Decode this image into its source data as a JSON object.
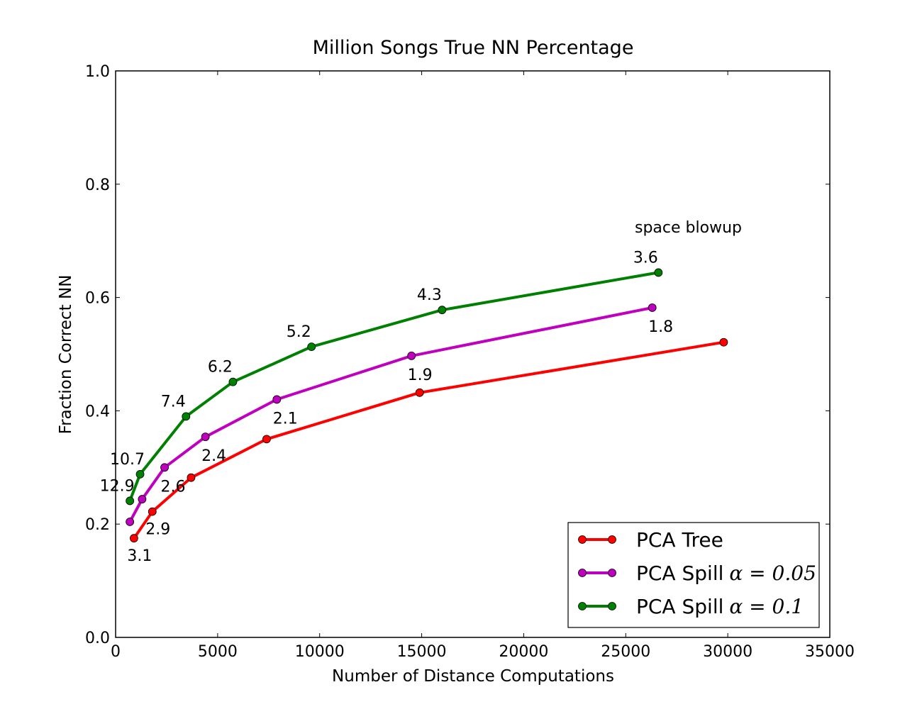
{
  "chart_data": {
    "type": "line",
    "title": "Million Songs True NN Percentage",
    "xlabel": "Number of Distance Computations",
    "ylabel": "Fraction Correct NN",
    "xlim": [
      0,
      35000
    ],
    "ylim": [
      0.0,
      1.0
    ],
    "xticks": [
      0,
      5000,
      10000,
      15000,
      20000,
      25000,
      30000,
      35000
    ],
    "xtick_labels": [
      "0",
      "5000",
      "10000",
      "15000",
      "20000",
      "25000",
      "30000",
      "35000"
    ],
    "yticks": [
      0.0,
      0.2,
      0.4,
      0.6,
      0.8,
      1.0
    ],
    "ytick_labels": [
      "0.0",
      "0.2",
      "0.4",
      "0.6",
      "0.8",
      "1.0"
    ],
    "grid": false,
    "legend_position": "lower-right",
    "annotation_header": "space blowup",
    "series": [
      {
        "name": "PCA Tree",
        "legend_math": "",
        "color": "#ff0000",
        "x": [
          900,
          1800,
          3700,
          7400,
          14900,
          29800
        ],
        "y": [
          0.175,
          0.222,
          0.282,
          0.35,
          0.432,
          0.521
        ],
        "labels": [
          "3.1",
          "2.9",
          "",
          "",
          "",
          ""
        ]
      },
      {
        "name": "PCA Spill",
        "legend_math": "α = 0.05",
        "color": "#bf00bf",
        "x": [
          700,
          1300,
          2400,
          4400,
          7900,
          14500,
          26300
        ],
        "y": [
          0.204,
          0.244,
          0.3,
          0.354,
          0.42,
          0.497,
          0.582
        ],
        "labels": [
          "",
          "",
          "2.6",
          "2.4",
          "2.1",
          "1.9",
          "1.8"
        ]
      },
      {
        "name": "PCA Spill",
        "legend_math": "α = 0.1",
        "color": "#008000",
        "x": [
          700,
          1200,
          3450,
          5750,
          9600,
          16000,
          26600
        ],
        "y": [
          0.241,
          0.288,
          0.39,
          0.451,
          0.513,
          0.578,
          0.644
        ],
        "labels": [
          "12.9",
          "10.7",
          "7.4",
          "6.2",
          "5.2",
          "4.3",
          "3.6"
        ]
      }
    ]
  }
}
